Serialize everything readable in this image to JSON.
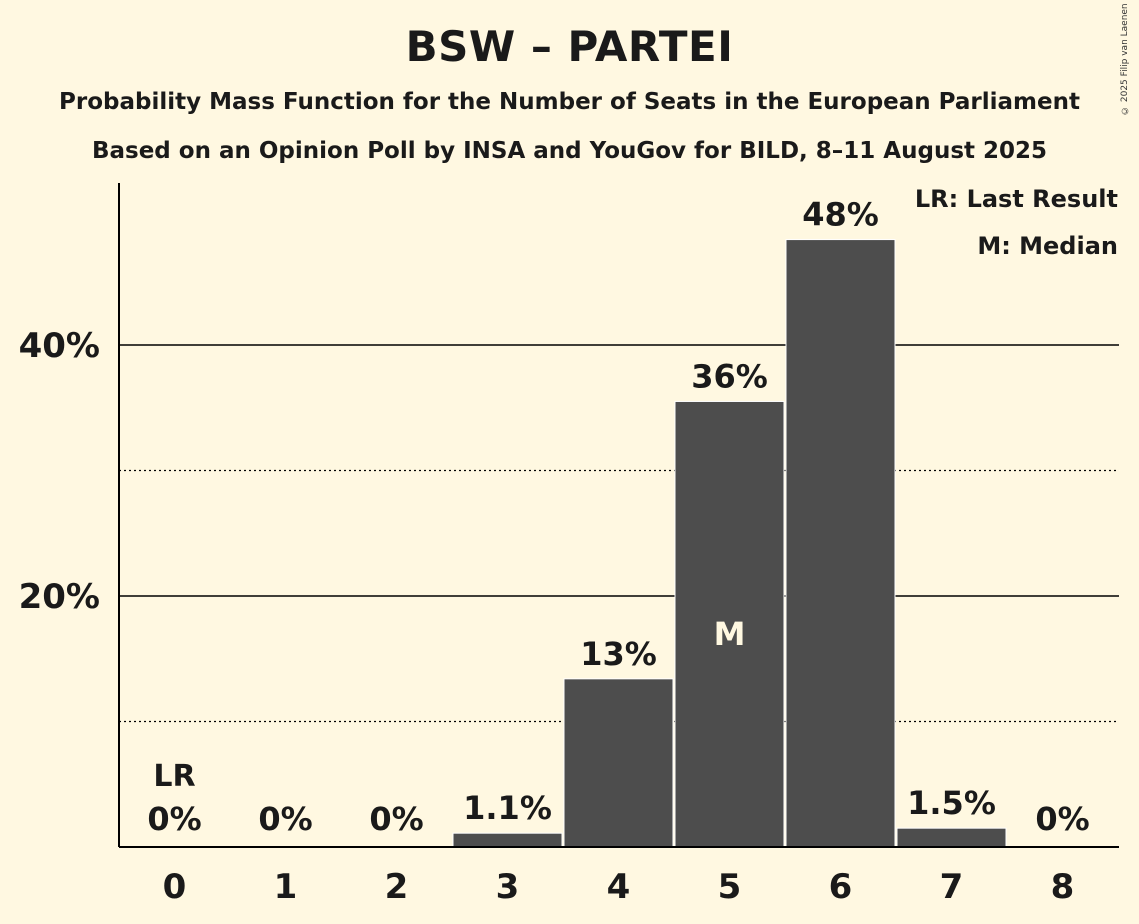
{
  "chart_data": {
    "type": "bar",
    "title": "BSW – PARTEI",
    "subtitle": "Probability Mass Function for the Number of Seats in the European Parliament",
    "subtitle2": "Based on an Opinion Poll by INSA and YouGov for BILD, 8–11 August 2025",
    "copyright": "© 2025 Filip van Laenen",
    "categories": [
      "0",
      "1",
      "2",
      "3",
      "4",
      "5",
      "6",
      "7",
      "8"
    ],
    "values": [
      0,
      0,
      0,
      1.1,
      13.4,
      35.5,
      48.4,
      1.5,
      0
    ],
    "value_labels": [
      "0%",
      "0%",
      "0%",
      "1.1%",
      "13%",
      "36%",
      "48%",
      "1.5%",
      "0%"
    ],
    "ylim": [
      0,
      52
    ],
    "y_ticks": [
      {
        "value": 20,
        "label": "20%"
      },
      {
        "value": 40,
        "label": "40%"
      }
    ],
    "minor_gridlines": [
      10,
      30
    ],
    "last_result_index": 0,
    "median_index": 5,
    "last_result_marker": "LR",
    "median_marker": "M",
    "legend": {
      "last_result": "LR: Last Result",
      "median": "M: Median"
    },
    "colors": {
      "background": "#fff8e1",
      "bar": "#4d4d4d",
      "bar_edge": "#ffffff",
      "text": "#1a1a1a",
      "median_text": "#fff8e1"
    }
  }
}
